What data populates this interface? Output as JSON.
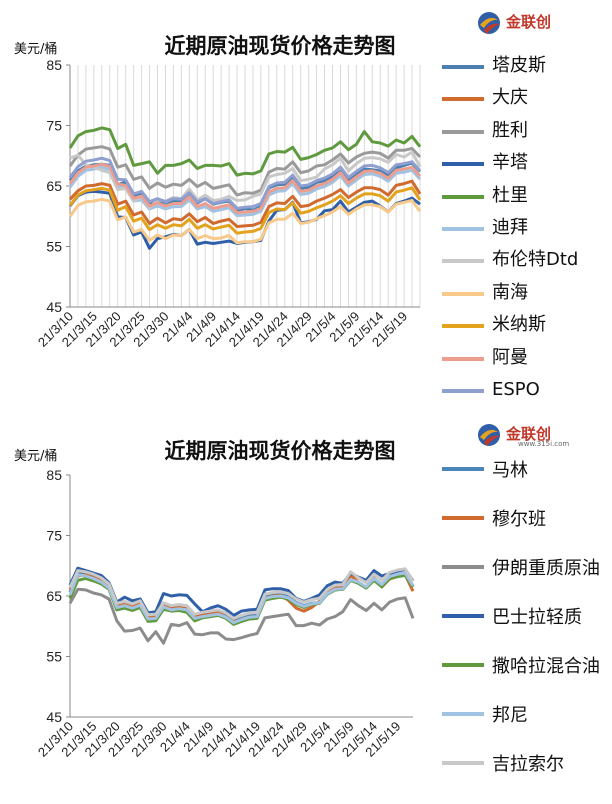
{
  "logo_text": "金联创",
  "logo_subtext": "www.315i.com",
  "chart_data": [
    {
      "type": "line",
      "title": "近期原油现货价格走势图",
      "ylabel": "美元/桶",
      "ylim": [
        45,
        85
      ],
      "yticks": [
        "85",
        "75",
        "65",
        "55",
        "45"
      ],
      "grid": "vertical",
      "legend_position": "right",
      "xtick_labels": [
        "21/3/10",
        "21/3/15",
        "21/3/20",
        "21/3/25",
        "21/3/30",
        "21/4/4",
        "21/4/9",
        "21/4/14",
        "21/4/19",
        "21/4/24",
        "21/4/29",
        "21/5/4",
        "21/5/9",
        "21/5/14",
        "21/5/19"
      ],
      "series": [
        {
          "name": "塔皮斯",
          "color": "#4a7fb0",
          "values": [
            65.9,
            67.5,
            68.3,
            68.5,
            68.6,
            68.4,
            65.2,
            65.7,
            63.4,
            63.9,
            62.0,
            62.8,
            61.8,
            62.5,
            62.5,
            63.5,
            62.2,
            62.9,
            62.0,
            62.3,
            62.5,
            60.9,
            61.3,
            61.0,
            61.6,
            64.7,
            65.2,
            65.3,
            66.3,
            64.6,
            64.8,
            65.6,
            65.9,
            66.6,
            67.4,
            66.1,
            67.0,
            67.8,
            67.7,
            67.5,
            66.8,
            68.0,
            68.4,
            68.8,
            67.4
          ]
        },
        {
          "name": "大庆",
          "color": "#d06a2e",
          "values": [
            62.8,
            64.2,
            65.0,
            65.1,
            65.4,
            65.1,
            62.0,
            62.5,
            60.2,
            60.7,
            58.8,
            59.7,
            58.9,
            59.6,
            59.4,
            60.4,
            59.1,
            59.8,
            58.8,
            59.2,
            59.5,
            58.3,
            58.4,
            58.5,
            59.0,
            61.6,
            62.2,
            62.1,
            63.3,
            61.6,
            61.8,
            62.5,
            63.0,
            63.6,
            64.4,
            63.1,
            64.0,
            64.7,
            64.7,
            64.4,
            63.5,
            65.1,
            65.4,
            65.8,
            63.7
          ]
        },
        {
          "name": "胜利",
          "color": "#9a9a9a",
          "values": [
            68.3,
            70.1,
            71.1,
            71.3,
            71.5,
            71.1,
            68.1,
            68.5,
            66.1,
            66.5,
            64.6,
            65.5,
            64.8,
            65.3,
            65.1,
            66.1,
            64.9,
            65.6,
            64.6,
            64.9,
            65.2,
            63.5,
            63.9,
            63.8,
            64.3,
            67.3,
            67.9,
            67.8,
            69.0,
            67.2,
            67.5,
            68.3,
            68.5,
            69.3,
            70.3,
            68.8,
            69.8,
            70.4,
            70.6,
            70.4,
            69.6,
            70.9,
            70.9,
            71.2,
            69.8
          ]
        },
        {
          "name": "辛塔",
          "color": "#2e5fa8",
          "values": [
            61.7,
            63.4,
            64.0,
            64.1,
            64.0,
            63.8,
            59.9,
            59.8,
            56.9,
            57.4,
            54.7,
            56.3,
            56.6,
            57.0,
            56.8,
            57.8,
            55.4,
            55.7,
            55.5,
            55.7,
            55.9,
            55.5,
            55.7,
            55.8,
            56.0,
            59.2,
            61.0,
            61.1,
            62.3,
            58.9,
            59.1,
            59.5,
            60.9,
            61.1,
            62.5,
            60.7,
            61.5,
            62.3,
            62.5,
            61.7,
            60.7,
            62.1,
            62.5,
            63.0,
            62.0
          ]
        },
        {
          "name": "杜里",
          "color": "#5f9a3f",
          "values": [
            71.3,
            73.3,
            74.0,
            74.2,
            74.6,
            74.3,
            71.2,
            71.9,
            68.4,
            68.7,
            69.0,
            67.1,
            68.4,
            68.4,
            68.7,
            69.3,
            67.9,
            68.4,
            68.4,
            68.3,
            68.7,
            66.8,
            67.1,
            67.0,
            67.5,
            70.3,
            70.7,
            70.6,
            71.4,
            69.4,
            69.7,
            70.2,
            70.9,
            71.3,
            72.3,
            71.0,
            71.9,
            74.0,
            72.3,
            72.1,
            71.6,
            72.6,
            72.1,
            73.2,
            71.5
          ]
        },
        {
          "name": "迪拜",
          "color": "#a2c2e2",
          "values": [
            64.8,
            66.6,
            67.6,
            67.8,
            68.1,
            67.7,
            64.9,
            64.6,
            62.5,
            62.7,
            61.2,
            61.7,
            61.2,
            61.6,
            61.6,
            62.7,
            61.2,
            61.6,
            60.8,
            61.1,
            61.4,
            60.1,
            60.2,
            60.3,
            60.8,
            63.5,
            64.1,
            64.2,
            65.4,
            63.6,
            63.8,
            64.5,
            64.9,
            65.6,
            66.7,
            65.0,
            66.0,
            66.9,
            67.0,
            66.6,
            65.8,
            67.1,
            67.3,
            67.6,
            66.1
          ]
        },
        {
          "name": "布伦特Dtd",
          "color": "#c8c8c8",
          "values": [
            69.6,
            70.1,
            68.5,
            68.1,
            67.6,
            67.2,
            64.4,
            64.6,
            62.5,
            63.3,
            61.4,
            62.7,
            62.5,
            63.1,
            62.9,
            64.5,
            62.7,
            63.5,
            62.6,
            62.8,
            63.3,
            62.6,
            62.7,
            63.3,
            63.7,
            66.5,
            66.9,
            67.1,
            67.9,
            65.9,
            66.1,
            66.5,
            67.8,
            68.5,
            69.6,
            67.5,
            68.7,
            69.6,
            69.7,
            69.5,
            68.9,
            70.2,
            69.8,
            70.6,
            68.2
          ]
        },
        {
          "name": "南海",
          "color": "#f7c98a",
          "values": [
            60.0,
            61.8,
            62.4,
            62.5,
            62.8,
            62.5,
            59.4,
            59.9,
            57.4,
            57.8,
            56.0,
            56.9,
            56.3,
            56.9,
            56.8,
            57.8,
            56.3,
            56.8,
            56.3,
            56.4,
            56.8,
            55.6,
            55.8,
            55.8,
            56.2,
            58.9,
            59.5,
            59.5,
            60.5,
            58.8,
            59.0,
            59.6,
            60.1,
            60.7,
            61.6,
            60.3,
            61.2,
            61.9,
            61.9,
            61.6,
            60.7,
            62.0,
            62.3,
            62.6,
            60.8
          ]
        },
        {
          "name": "米纳斯",
          "color": "#e3a21d",
          "values": [
            61.8,
            63.5,
            64.2,
            64.4,
            64.6,
            64.3,
            61.0,
            61.6,
            59.2,
            59.7,
            57.8,
            58.6,
            58.0,
            58.6,
            58.4,
            59.5,
            58.0,
            58.6,
            57.9,
            58.2,
            58.5,
            57.2,
            57.4,
            57.5,
            58.0,
            60.6,
            61.2,
            61.1,
            62.2,
            60.5,
            60.8,
            61.4,
            61.9,
            62.5,
            63.4,
            62.1,
            63.0,
            63.7,
            63.7,
            63.4,
            62.5,
            64.0,
            64.3,
            64.7,
            62.7
          ]
        },
        {
          "name": "阿曼",
          "color": "#ec9d8d",
          "values": [
            65.4,
            67.2,
            68.1,
            68.3,
            68.6,
            68.2,
            65.3,
            65.1,
            63.0,
            63.3,
            61.7,
            62.2,
            61.7,
            62.1,
            62.1,
            63.2,
            61.6,
            62.1,
            61.3,
            61.6,
            61.9,
            60.6,
            60.7,
            60.8,
            61.3,
            64.0,
            64.6,
            64.7,
            65.9,
            64.1,
            64.3,
            65.0,
            65.4,
            66.1,
            67.2,
            65.5,
            66.5,
            67.4,
            67.5,
            67.1,
            66.3,
            67.6,
            67.8,
            68.1,
            66.6
          ]
        },
        {
          "name": "ESPO",
          "color": "#8e9fd0",
          "values": [
            66.4,
            68.2,
            69.1,
            69.3,
            69.6,
            69.2,
            66.1,
            66.0,
            63.7,
            64.1,
            62.4,
            62.9,
            62.4,
            62.9,
            62.8,
            63.9,
            62.4,
            62.9,
            62.1,
            62.4,
            62.7,
            61.3,
            61.5,
            61.6,
            62.1,
            64.9,
            65.5,
            65.6,
            66.8,
            65.0,
            65.2,
            65.9,
            66.3,
            67.0,
            68.1,
            66.4,
            67.4,
            68.3,
            68.4,
            68.0,
            67.2,
            68.5,
            68.7,
            69.0,
            67.5
          ]
        }
      ]
    },
    {
      "type": "line",
      "title": "近期原油现货价格走势图",
      "ylabel": "美元/桶",
      "ylim": [
        45,
        85
      ],
      "yticks": [
        "85",
        "75",
        "65",
        "55",
        "45"
      ],
      "grid": "none",
      "legend_position": "right",
      "xtick_labels": [
        "21/3/10",
        "21/3/15",
        "21/3/20",
        "21/3/25",
        "21/3/30",
        "21/4/4",
        "21/4/9",
        "21/4/14",
        "21/4/19",
        "21/4/24",
        "21/4/29",
        "21/5/4",
        "21/5/9",
        "21/5/14",
        "21/5/19"
      ],
      "series": [
        {
          "name": "马林",
          "color": "#4a86b8",
          "values": [
            65.6,
            68.8,
            68.6,
            68.3,
            67.7,
            66.7,
            63.5,
            63.8,
            63.4,
            63.9,
            61.5,
            61.6,
            63.5,
            63.0,
            63.1,
            62.9,
            61.6,
            61.9,
            62.1,
            62.3,
            61.7,
            60.8,
            61.3,
            61.7,
            61.8,
            64.8,
            65.1,
            65.2,
            64.9,
            63.9,
            63.4,
            63.8,
            63.9,
            65.3,
            66.0,
            66.1,
            67.6,
            67.2,
            66.4,
            67.8,
            66.8,
            68.1,
            68.5,
            68.7,
            66.6
          ]
        },
        {
          "name": "穆尔班",
          "color": "#d06a2e",
          "values": [
            66.0,
            68.3,
            68.5,
            68.0,
            67.6,
            66.6,
            63.4,
            63.6,
            63.2,
            63.8,
            61.5,
            61.6,
            63.4,
            62.9,
            63.1,
            62.9,
            61.5,
            61.8,
            62.0,
            62.3,
            61.5,
            60.7,
            61.1,
            61.5,
            61.6,
            64.6,
            65.0,
            65.1,
            64.3,
            63.0,
            62.5,
            63.1,
            64.1,
            65.5,
            66.3,
            66.4,
            68.4,
            67.3,
            66.4,
            68.0,
            66.5,
            67.8,
            68.2,
            68.5,
            65.8
          ]
        },
        {
          "name": "伊朗重质原油",
          "color": "#8c8c8c",
          "values": [
            63.8,
            66.1,
            66.0,
            65.5,
            65.2,
            64.5,
            60.9,
            59.2,
            59.3,
            59.7,
            57.6,
            59.1,
            57.2,
            60.3,
            60.1,
            60.6,
            58.7,
            58.6,
            58.9,
            58.9,
            57.9,
            57.8,
            58.1,
            58.5,
            58.8,
            61.4,
            61.6,
            61.8,
            62.0,
            60.1,
            60.1,
            60.5,
            60.2,
            61.2,
            61.6,
            62.4,
            64.4,
            63.4,
            62.6,
            63.8,
            62.7,
            64.0,
            64.5,
            64.7,
            61.3
          ]
        },
        {
          "name": "巴士拉轻质",
          "color": "#2e5fa8",
          "values": [
            66.8,
            69.6,
            69.2,
            68.8,
            68.4,
            67.2,
            64.0,
            64.8,
            64.2,
            64.5,
            62.2,
            62.4,
            65.4,
            65.0,
            65.2,
            65.1,
            63.7,
            62.4,
            63.0,
            63.4,
            62.8,
            61.8,
            62.5,
            62.7,
            62.8,
            66.0,
            66.2,
            66.2,
            65.9,
            64.6,
            64.1,
            64.6,
            65.2,
            66.7,
            67.3,
            67.1,
            68.8,
            68.1,
            67.6,
            69.2,
            68.3,
            68.7,
            69.1,
            69.4,
            67.5
          ]
        },
        {
          "name": "撒哈拉混合油",
          "color": "#5f9a3f",
          "values": [
            64.6,
            67.6,
            67.9,
            67.5,
            67.0,
            66.1,
            62.7,
            63.0,
            62.6,
            63.1,
            60.8,
            60.9,
            62.8,
            62.5,
            62.6,
            62.3,
            60.9,
            61.4,
            61.6,
            61.8,
            61.3,
            60.3,
            60.8,
            61.2,
            61.3,
            64.3,
            64.6,
            64.8,
            64.5,
            63.6,
            63.1,
            63.6,
            63.8,
            65.3,
            66.0,
            66.1,
            67.6,
            67.1,
            66.3,
            67.6,
            66.5,
            67.9,
            68.2,
            68.4,
            66.5
          ]
        },
        {
          "name": "邦尼",
          "color": "#a2c2e2",
          "values": [
            65.2,
            68.5,
            68.3,
            67.9,
            67.3,
            66.3,
            63.1,
            63.4,
            63.0,
            63.5,
            61.2,
            61.3,
            63.2,
            62.7,
            62.9,
            62.7,
            61.3,
            61.6,
            61.8,
            62.0,
            61.5,
            60.6,
            61.1,
            61.5,
            61.6,
            64.6,
            64.9,
            65.0,
            64.7,
            63.8,
            63.3,
            63.7,
            63.9,
            65.4,
            66.1,
            66.2,
            67.7,
            67.3,
            66.5,
            67.9,
            66.9,
            68.2,
            68.6,
            68.8,
            66.7
          ]
        },
        {
          "name": "吉拉索尔",
          "color": "#c8c8c8",
          "values": [
            66.4,
            69.2,
            69.0,
            68.6,
            68.0,
            67.0,
            63.8,
            64.1,
            63.7,
            64.2,
            61.9,
            62.0,
            63.9,
            63.4,
            63.6,
            63.4,
            62.0,
            62.3,
            62.5,
            62.7,
            62.2,
            61.3,
            61.8,
            62.2,
            62.3,
            65.3,
            65.6,
            65.7,
            65.4,
            64.5,
            64.0,
            64.4,
            64.6,
            66.1,
            66.8,
            66.9,
            69.0,
            68.0,
            67.2,
            68.6,
            67.6,
            68.9,
            69.3,
            69.5,
            67.4
          ]
        }
      ]
    }
  ]
}
